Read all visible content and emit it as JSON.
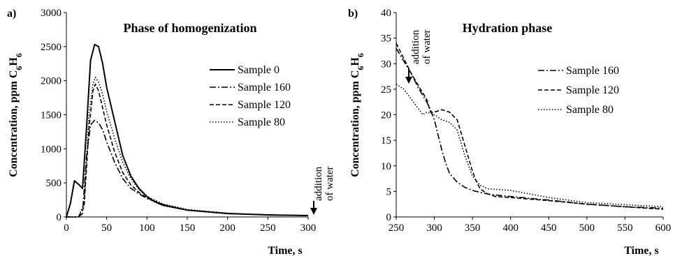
{
  "chart_data": [
    {
      "type": "line",
      "panel_label": "a)",
      "title": "Phase of homogenization",
      "xlabel": "Time, s",
      "ylabel": "Concentration, ppm C6H6",
      "xlim": [
        0,
        300
      ],
      "ylim": [
        0,
        3000
      ],
      "x_ticks": [
        0,
        50,
        100,
        150,
        200,
        250,
        300
      ],
      "y_ticks": [
        0,
        500,
        1000,
        1500,
        2000,
        2500,
        3000
      ],
      "grid": false,
      "legend_position": "right",
      "annotation": {
        "line1": "addition",
        "line2": "of water"
      },
      "series": [
        {
          "name": "Sample 0",
          "style": "solid",
          "points": [
            [
              0,
              0
            ],
            [
              5,
              200
            ],
            [
              10,
              530
            ],
            [
              15,
              480
            ],
            [
              20,
              420
            ],
            [
              25,
              1300
            ],
            [
              30,
              2300
            ],
            [
              35,
              2530
            ],
            [
              40,
              2500
            ],
            [
              45,
              2250
            ],
            [
              50,
              1900
            ],
            [
              60,
              1400
            ],
            [
              70,
              900
            ],
            [
              80,
              600
            ],
            [
              90,
              420
            ],
            [
              100,
              300
            ],
            [
              110,
              220
            ],
            [
              120,
              170
            ],
            [
              150,
              100
            ],
            [
              200,
              50
            ],
            [
              250,
              30
            ],
            [
              300,
              20
            ]
          ]
        },
        {
          "name": "Sample 160",
          "style": "dashdot",
          "points": [
            [
              0,
              0
            ],
            [
              15,
              0
            ],
            [
              20,
              50
            ],
            [
              25,
              900
            ],
            [
              30,
              1350
            ],
            [
              35,
              1420
            ],
            [
              40,
              1380
            ],
            [
              45,
              1280
            ],
            [
              50,
              1100
            ],
            [
              60,
              800
            ],
            [
              70,
              560
            ],
            [
              80,
              420
            ],
            [
              90,
              340
            ],
            [
              100,
              270
            ],
            [
              120,
              180
            ],
            [
              150,
              100
            ],
            [
              200,
              50
            ],
            [
              250,
              30
            ],
            [
              300,
              20
            ]
          ]
        },
        {
          "name": "Sample 120",
          "style": "dash",
          "points": [
            [
              0,
              0
            ],
            [
              15,
              0
            ],
            [
              22,
              150
            ],
            [
              28,
              1300
            ],
            [
              33,
              1850
            ],
            [
              36,
              1950
            ],
            [
              40,
              1850
            ],
            [
              45,
              1600
            ],
            [
              50,
              1350
            ],
            [
              60,
              950
            ],
            [
              70,
              650
            ],
            [
              80,
              470
            ],
            [
              90,
              360
            ],
            [
              100,
              280
            ],
            [
              120,
              180
            ],
            [
              150,
              100
            ],
            [
              200,
              50
            ],
            [
              250,
              30
            ],
            [
              300,
              20
            ]
          ]
        },
        {
          "name": "Sample 80",
          "style": "dot",
          "points": [
            [
              0,
              0
            ],
            [
              15,
              0
            ],
            [
              22,
              200
            ],
            [
              28,
              1500
            ],
            [
              33,
              1950
            ],
            [
              36,
              2050
            ],
            [
              40,
              1980
            ],
            [
              45,
              1800
            ],
            [
              50,
              1550
            ],
            [
              60,
              1150
            ],
            [
              70,
              800
            ],
            [
              80,
              560
            ],
            [
              90,
              400
            ],
            [
              100,
              300
            ],
            [
              120,
              190
            ],
            [
              150,
              110
            ],
            [
              200,
              55
            ],
            [
              250,
              30
            ],
            [
              300,
              20
            ]
          ]
        }
      ]
    },
    {
      "type": "line",
      "panel_label": "b)",
      "title": "Hydration phase",
      "xlabel": "Time, s",
      "ylabel": "Concentration, ppm C6H6",
      "xlim": [
        250,
        600
      ],
      "ylim": [
        0,
        40
      ],
      "x_ticks": [
        250,
        300,
        350,
        400,
        450,
        500,
        550,
        600
      ],
      "y_ticks": [
        0,
        5,
        10,
        15,
        20,
        25,
        30,
        35,
        40
      ],
      "grid": false,
      "legend_position": "right",
      "annotation": {
        "line1": "addition",
        "line2": "of water"
      },
      "series": [
        {
          "name": "Sample 160",
          "style": "dashdot",
          "points": [
            [
              250,
              33
            ],
            [
              260,
              30.5
            ],
            [
              270,
              28
            ],
            [
              280,
              25
            ],
            [
              290,
              22.5
            ],
            [
              295,
              21
            ],
            [
              300,
              19
            ],
            [
              305,
              16
            ],
            [
              310,
              13
            ],
            [
              315,
              10.5
            ],
            [
              320,
              8.5
            ],
            [
              330,
              6.8
            ],
            [
              340,
              5.8
            ],
            [
              350,
              5.2
            ],
            [
              360,
              4.8
            ],
            [
              370,
              4.5
            ],
            [
              380,
              4.3
            ],
            [
              400,
              4.0
            ],
            [
              450,
              3.3
            ],
            [
              500,
              2.5
            ],
            [
              550,
              2.0
            ],
            [
              600,
              1.7
            ]
          ]
        },
        {
          "name": "Sample 120",
          "style": "dash",
          "points": [
            [
              250,
              34
            ],
            [
              260,
              31
            ],
            [
              270,
              28
            ],
            [
              280,
              25.5
            ],
            [
              290,
              23
            ],
            [
              295,
              20.5
            ],
            [
              300,
              20.5
            ],
            [
              310,
              21
            ],
            [
              320,
              20.5
            ],
            [
              330,
              19
            ],
            [
              340,
              14
            ],
            [
              350,
              9
            ],
            [
              355,
              7
            ],
            [
              360,
              5.5
            ],
            [
              370,
              4.5
            ],
            [
              380,
              4.0
            ],
            [
              400,
              3.8
            ],
            [
              450,
              3.2
            ],
            [
              500,
              2.5
            ],
            [
              550,
              2.0
            ],
            [
              600,
              1.5
            ]
          ]
        },
        {
          "name": "Sample 80",
          "style": "dot",
          "points": [
            [
              250,
              26
            ],
            [
              260,
              25
            ],
            [
              270,
              23
            ],
            [
              280,
              21
            ],
            [
              285,
              20
            ],
            [
              290,
              20.5
            ],
            [
              300,
              20
            ],
            [
              310,
              19
            ],
            [
              320,
              18.5
            ],
            [
              330,
              17
            ],
            [
              340,
              12
            ],
            [
              350,
              8
            ],
            [
              360,
              6.2
            ],
            [
              370,
              5.5
            ],
            [
              380,
              5.4
            ],
            [
              400,
              5.2
            ],
            [
              450,
              3.8
            ],
            [
              500,
              2.8
            ],
            [
              550,
              2.4
            ],
            [
              600,
              2.0
            ]
          ]
        }
      ]
    }
  ]
}
